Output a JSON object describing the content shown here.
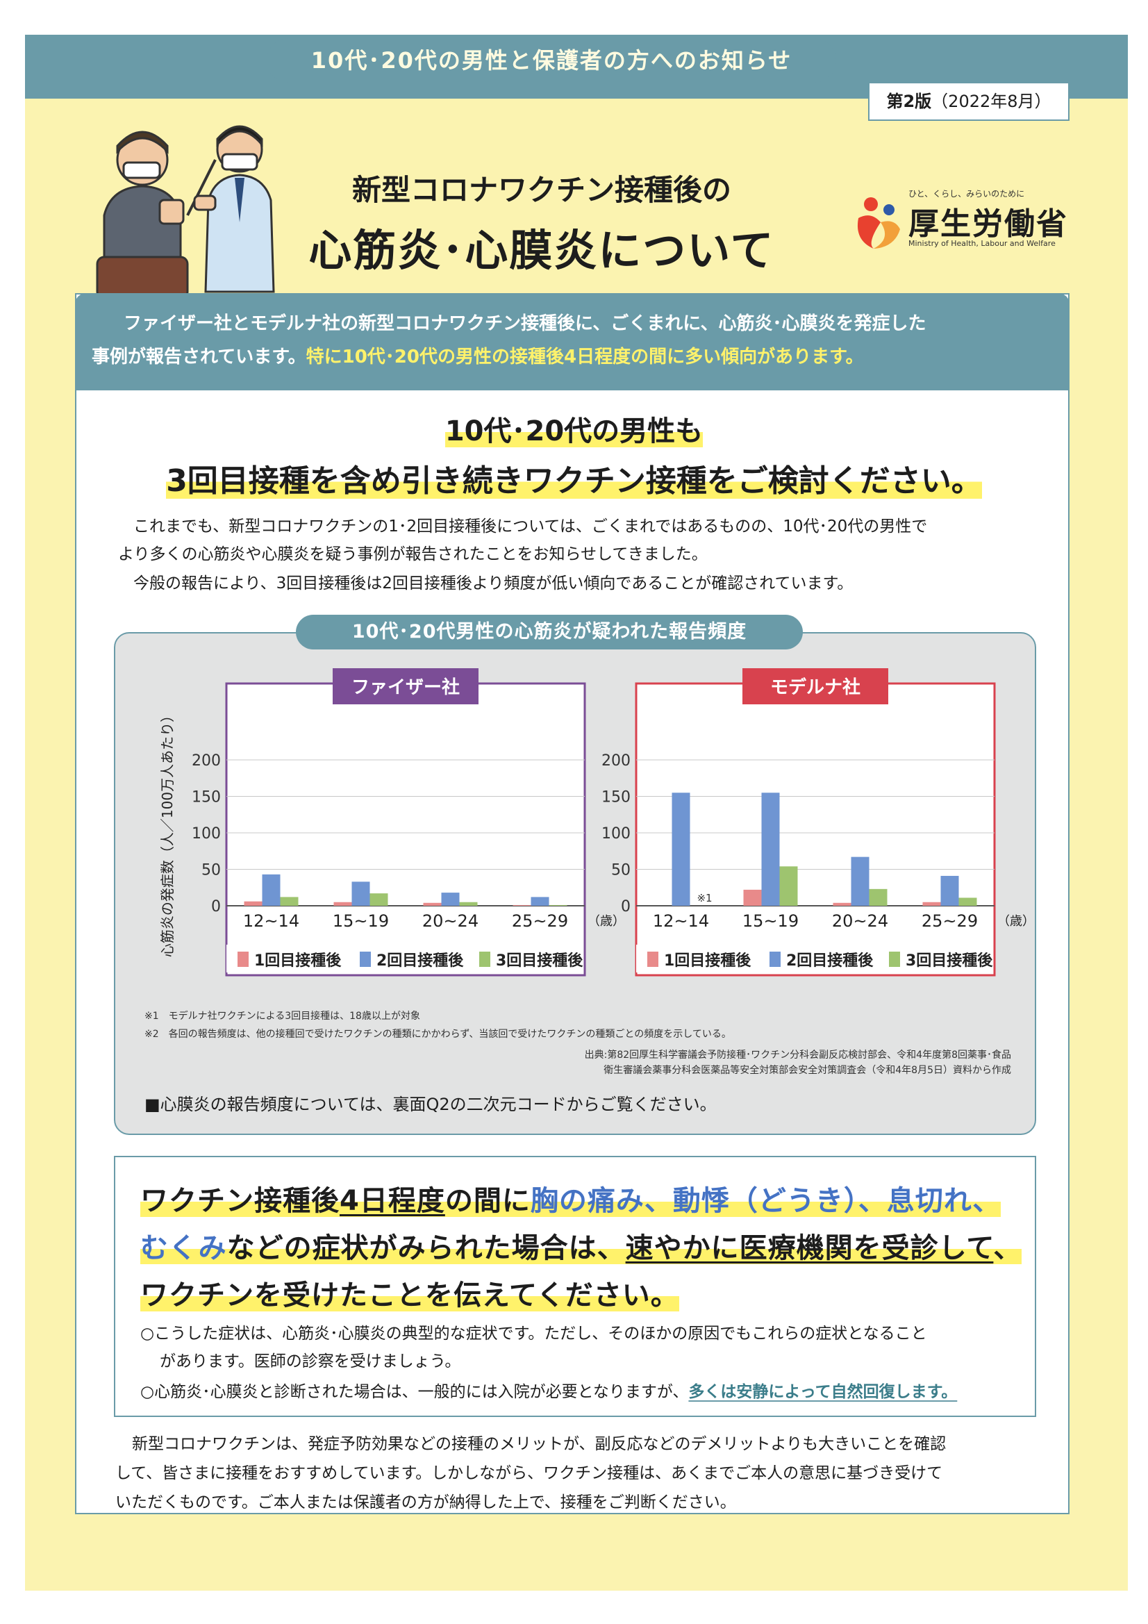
{
  "header": {
    "notice_tab": "10代･20代の男性と保護者の方へのお知らせ",
    "edition_bold": "第2版",
    "edition_date": "（2022年8月）",
    "title_line1": "新型コロナワクチン接種後の",
    "title_line2": "心筋炎･心膜炎について"
  },
  "ministry": {
    "tagline": "ひと、くらし、みらいのために",
    "name": "厚生労働省",
    "name_en": "Ministry of Health, Labour and Welfare"
  },
  "intro": {
    "text_a": "ファイザー社とモデルナ社の新型コロナワクチン接種後に、ごくまれに、心筋炎･心膜炎を発症した",
    "text_b": "事例が報告されています。",
    "text_hl": "特に10代･20代の男性の接種後4日程度の間に多い傾向があります。"
  },
  "headline": {
    "line1": "10代･20代の男性も",
    "line2": "3回目接種を含め引き続きワクチン接種をご検討ください。"
  },
  "body": {
    "p1_line1": "これまでも、新型コロナワクチンの1･2回目接種後については、ごくまれではあるものの、10代･20代の男性で",
    "p1_line2": "より多くの心筋炎や心膜炎を疑う事例が報告されたことをお知らせしてきました。",
    "p2": "今般の報告により、3回目接種後は2回目接種後より頻度が低い傾向であることが確認されています。"
  },
  "chart_section": {
    "title": "10代･20代男性の心筋炎が疑われた報告頻度",
    "note1": "※1　モデルナ社ワクチンによる3回目接種は、18歳以上が対象",
    "note2": "※2　各回の報告頻度は、他の接種回で受けたワクチンの種類にかかわらず、当該回で受けたワクチンの種類ごとの頻度を示している。",
    "source1": "出典:第82回厚生科学審議会予防接種･ワクチン分科会副反応検討部会、令和4年度第8回薬事･食品",
    "source2": "衛生審議会薬事分科会医薬品等安全対策部会安全対策調査会（令和4年8月5日）資料から作成",
    "pericarditis": "■心膜炎の報告頻度については、裏面Q2の二次元コードからご覧ください。"
  },
  "chart_data": [
    {
      "type": "bar",
      "title": "ファイザー社",
      "categories": [
        "12~14",
        "15~19",
        "20~24",
        "25~29"
      ],
      "x_unit": "（歳）",
      "ylabel": "心筋炎の発症数（人／100万人あたり）",
      "ylim": [
        0,
        200
      ],
      "yticks": [
        0,
        50,
        100,
        150,
        200
      ],
      "grid": true,
      "legend_position": "bottom",
      "series": [
        {
          "name": "1回目接種後",
          "color": "#e88a8a",
          "values": [
            6,
            5,
            4,
            1
          ]
        },
        {
          "name": "2回目接種後",
          "color": "#6f95d2",
          "values": [
            43,
            33,
            18,
            12
          ]
        },
        {
          "name": "3回目接種後",
          "color": "#9ec46f",
          "values": [
            12,
            17,
            5,
            1
          ]
        }
      ],
      "frame_color": "#7b4d96"
    },
    {
      "type": "bar",
      "title": "モデルナ社",
      "categories": [
        "12~14",
        "15~19",
        "20~24",
        "25~29"
      ],
      "x_unit": "（歳）",
      "ylim": [
        0,
        200
      ],
      "yticks": [
        0,
        50,
        100,
        150,
        200
      ],
      "grid": true,
      "legend_position": "bottom",
      "annotation": "※1",
      "series": [
        {
          "name": "1回目接種後",
          "color": "#e88a8a",
          "values": [
            0,
            22,
            4,
            5
          ]
        },
        {
          "name": "2回目接種後",
          "color": "#6f95d2",
          "values": [
            155,
            155,
            67,
            41
          ]
        },
        {
          "name": "3回目接種後",
          "color": "#9ec46f",
          "values": [
            0,
            54,
            23,
            11
          ]
        }
      ],
      "frame_color": "#d8424e"
    }
  ],
  "warning": {
    "l1_a": "ワクチン接種後",
    "l1_b": "4日程度",
    "l1_c": "の間に",
    "l1_d": "胸の痛み、動悸（どうき）、息切れ、",
    "l2_a": "むくみ",
    "l2_b": "などの症状がみられた場合は、",
    "l2_c": "速やかに医療機関を受診して",
    "l2_d": "、",
    "l3": "ワクチンを受けたことを伝えてください。",
    "b1_line1": "○こうした症状は、心筋炎･心膜炎の典型的な症状です。ただし、そのほかの原因でもこれらの症状となること",
    "b1_line2": "があります。医師の診察を受けましょう。",
    "b2_a": "○心筋炎･心膜炎と診断された場合は、一般的には入院が必要となりますが、",
    "b2_link": "多くは安静によって自然回復します。"
  },
  "closing": {
    "line1": "新型コロナワクチンは、発症予防効果などの接種のメリットが、副反応などのデメリットよりも大きいことを確認",
    "line2": "して、皆さまに接種をおすすめしています。しかしながら、ワクチン接種は、あくまでご本人の意思に基づき受けて",
    "line3": "いただくものです。ご本人または保護者の方が納得した上で、接種をご判断ください。"
  },
  "colors": {
    "teal": "#6a9ba8",
    "background_yellow": "#fbf3b0",
    "highlight_yellow": "#fff26b",
    "accent_blue": "#4472c4"
  }
}
